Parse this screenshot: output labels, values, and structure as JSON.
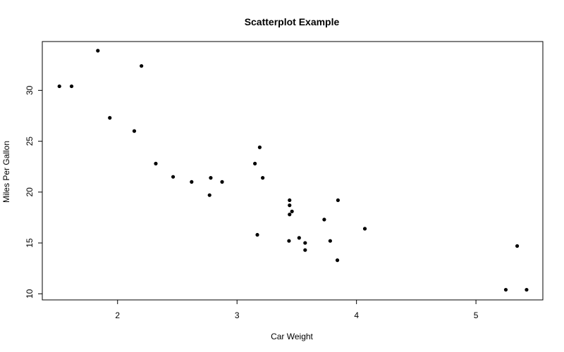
{
  "chart_data": {
    "type": "scatter",
    "title": "Scatterplot Example",
    "xlabel": "Car Weight",
    "ylabel": "Miles Per Gallon",
    "xlim": [
      1.37,
      5.56
    ],
    "ylim": [
      9.4,
      34.8
    ],
    "xticks": [
      2,
      3,
      4,
      5
    ],
    "yticks": [
      10,
      15,
      20,
      25,
      30
    ],
    "grid": false,
    "legend": "none",
    "point_color": "#000000",
    "points": [
      {
        "x": 2.62,
        "y": 21.0
      },
      {
        "x": 2.875,
        "y": 21.0
      },
      {
        "x": 2.32,
        "y": 22.8
      },
      {
        "x": 3.215,
        "y": 21.4
      },
      {
        "x": 3.44,
        "y": 18.7
      },
      {
        "x": 3.46,
        "y": 18.1
      },
      {
        "x": 3.57,
        "y": 14.3
      },
      {
        "x": 3.19,
        "y": 24.4
      },
      {
        "x": 3.15,
        "y": 22.8
      },
      {
        "x": 3.44,
        "y": 19.2
      },
      {
        "x": 3.44,
        "y": 17.8
      },
      {
        "x": 4.07,
        "y": 16.4
      },
      {
        "x": 3.73,
        "y": 17.3
      },
      {
        "x": 3.78,
        "y": 15.2
      },
      {
        "x": 5.25,
        "y": 10.4
      },
      {
        "x": 5.424,
        "y": 10.4
      },
      {
        "x": 5.345,
        "y": 14.7
      },
      {
        "x": 2.2,
        "y": 32.4
      },
      {
        "x": 1.615,
        "y": 30.4
      },
      {
        "x": 1.835,
        "y": 33.9
      },
      {
        "x": 2.465,
        "y": 21.5
      },
      {
        "x": 3.52,
        "y": 15.5
      },
      {
        "x": 3.435,
        "y": 15.2
      },
      {
        "x": 3.84,
        "y": 13.3
      },
      {
        "x": 3.845,
        "y": 19.2
      },
      {
        "x": 1.935,
        "y": 27.3
      },
      {
        "x": 2.14,
        "y": 26.0
      },
      {
        "x": 1.513,
        "y": 30.4
      },
      {
        "x": 3.17,
        "y": 15.8
      },
      {
        "x": 2.77,
        "y": 19.7
      },
      {
        "x": 3.57,
        "y": 15.0
      },
      {
        "x": 2.78,
        "y": 21.4
      }
    ]
  }
}
